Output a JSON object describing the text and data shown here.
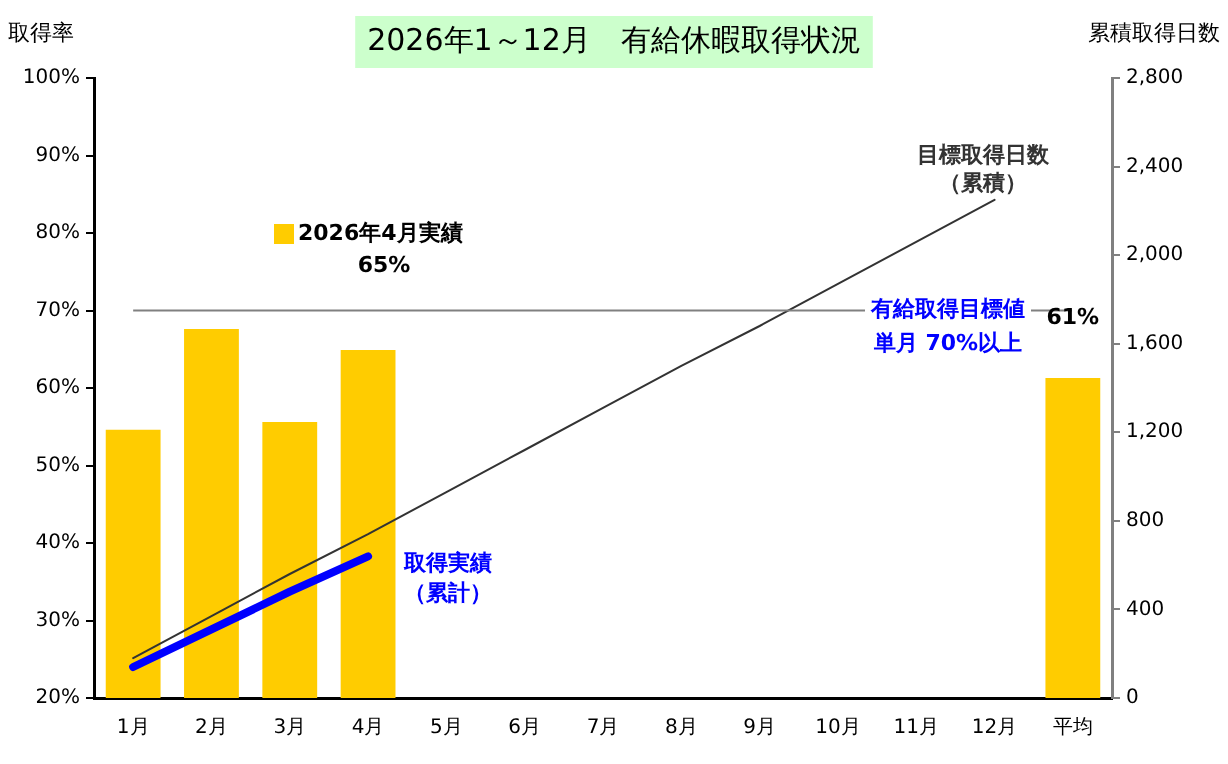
{
  "chart_data": {
    "type": "bar",
    "title": "2026年1～12月　有給休暇取得状況",
    "ylabel": "取得率",
    "y2label": "累積取得日数",
    "categories": [
      "1月",
      "2月",
      "3月",
      "4月",
      "5月",
      "6月",
      "7月",
      "8月",
      "9月",
      "10月",
      "11月",
      "12月",
      "平均"
    ],
    "series": [
      {
        "name": "2026年4月実績",
        "color": "#ffcc00",
        "values": [
          54.6,
          67.6,
          55.6,
          64.9,
          null,
          null,
          null,
          null,
          null,
          null,
          null,
          null,
          61.3
        ],
        "value_labels": [
          null,
          null,
          null,
          null,
          null,
          null,
          null,
          null,
          null,
          null,
          null,
          null,
          "61%"
        ]
      },
      {
        "type": "line",
        "axis": "y2",
        "name": "目標取得日数（累積）",
        "color": "#333333",
        "values": [
          180,
          370,
          560,
          740,
          930,
          1120,
          1310,
          1500,
          1680,
          1870,
          2060,
          2250,
          null
        ]
      },
      {
        "type": "line",
        "axis": "y2",
        "name": "取得実績（累計）",
        "color": "#0000ff",
        "values": [
          140,
          310,
          480,
          640,
          null,
          null,
          null,
          null,
          null,
          null,
          null,
          null,
          null
        ]
      }
    ],
    "ylim": [
      20,
      100
    ],
    "yticks": [
      {
        "value": 20,
        "label": "20%"
      },
      {
        "value": 30,
        "label": "30%"
      },
      {
        "value": 40,
        "label": "40%"
      },
      {
        "value": 50,
        "label": "50%"
      },
      {
        "value": 60,
        "label": "60%"
      },
      {
        "value": 70,
        "label": "70%"
      },
      {
        "value": 80,
        "label": "80%"
      },
      {
        "value": 90,
        "label": "90%"
      },
      {
        "value": 100,
        "label": "100%"
      }
    ],
    "y2lim": [
      0,
      2800
    ],
    "y2ticks": [
      0,
      400,
      800,
      {
        "value": 1200,
        "label": "1,200"
      },
      {
        "value": 1600,
        "label": "1,600"
      },
      {
        "value": 2000,
        "label": "2,000"
      },
      {
        "value": 2400,
        "label": "2,400"
      },
      {
        "value": 2800,
        "label": "2,800"
      }
    ],
    "ref_lines": [
      {
        "axis": "y",
        "value": 70,
        "label": "有給取得目標値単月 70%以上",
        "color": "#808080"
      }
    ],
    "annotations": [
      "65%"
    ],
    "legend": "top left",
    "grid": false,
    "marker": "none",
    "line_style": "solid"
  }
}
